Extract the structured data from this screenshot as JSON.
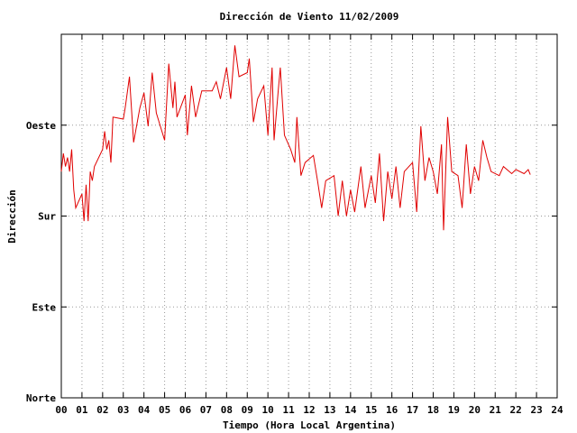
{
  "chart_data": {
    "type": "line",
    "title": "Dirección de Viento 11/02/2009",
    "x_label": "Tiempo (Hora Local Argentina)",
    "y_label": "Dirección",
    "xlim": [
      0,
      24
    ],
    "ylim": [
      0,
      360
    ],
    "grid": true,
    "xticks": [
      {
        "value": 0,
        "label": "00"
      },
      {
        "value": 1,
        "label": "01"
      },
      {
        "value": 2,
        "label": "02"
      },
      {
        "value": 3,
        "label": "03"
      },
      {
        "value": 4,
        "label": "04"
      },
      {
        "value": 5,
        "label": "05"
      },
      {
        "value": 6,
        "label": "06"
      },
      {
        "value": 7,
        "label": "07"
      },
      {
        "value": 8,
        "label": "08"
      },
      {
        "value": 9,
        "label": "09"
      },
      10,
      11,
      12,
      13,
      14,
      15,
      16,
      17,
      18,
      19,
      20,
      21,
      22,
      23,
      24
    ],
    "yticks": [
      {
        "value": 0,
        "label": "Norte"
      },
      {
        "value": 90,
        "label": "Este"
      },
      {
        "value": 180,
        "label": "Sur"
      },
      {
        "value": 270,
        "label": "Oeste"
      }
    ],
    "series": [
      {
        "color": "#e00000",
        "x": [
          0.0,
          0.1,
          0.2,
          0.3,
          0.4,
          0.5,
          0.6,
          0.7,
          1.0,
          1.1,
          1.2,
          1.3,
          1.4,
          1.5,
          1.6,
          2.0,
          2.1,
          2.2,
          2.3,
          2.4,
          2.5,
          3.0,
          3.1,
          3.3,
          3.5,
          3.8,
          4.0,
          4.2,
          4.4,
          4.6,
          5.0,
          5.2,
          5.4,
          5.5,
          5.6,
          6.0,
          6.1,
          6.3,
          6.5,
          6.8,
          7.3,
          7.5,
          7.7,
          8.0,
          8.2,
          8.4,
          8.6,
          9.0,
          9.1,
          9.3,
          9.5,
          9.8,
          10.0,
          10.2,
          10.3,
          10.5,
          10.6,
          10.8,
          11.1,
          11.3,
          11.4,
          11.6,
          11.8,
          12.2,
          12.4,
          12.6,
          12.8,
          13.2,
          13.4,
          13.6,
          13.8,
          14.0,
          14.2,
          14.5,
          14.7,
          15.0,
          15.2,
          15.4,
          15.6,
          15.8,
          16.0,
          16.2,
          16.4,
          16.6,
          17.0,
          17.2,
          17.4,
          17.6,
          17.8,
          18.0,
          18.2,
          18.4,
          18.5,
          18.7,
          18.9,
          19.2,
          19.4,
          19.6,
          19.8,
          20.0,
          20.2,
          20.4,
          20.6,
          20.8,
          21.2,
          21.4,
          21.8,
          22.0,
          22.4,
          22.6,
          22.7
        ],
        "values": [
          224,
          242,
          229,
          238,
          224,
          246,
          206,
          188,
          202,
          175,
          211,
          175,
          224,
          215,
          229,
          246,
          264,
          246,
          255,
          233,
          278,
          276,
          288,
          318,
          253,
          287,
          302,
          269,
          322,
          282,
          255,
          331,
          287,
          313,
          278,
          300,
          260,
          309,
          278,
          304,
          304,
          313,
          296,
          327,
          296,
          349,
          318,
          322,
          336,
          273,
          296,
          309,
          260,
          327,
          255,
          304,
          327,
          260,
          246,
          233,
          278,
          220,
          233,
          240,
          215,
          188,
          215,
          220,
          180,
          215,
          180,
          206,
          184,
          229,
          188,
          220,
          193,
          242,
          175,
          224,
          197,
          229,
          188,
          224,
          233,
          184,
          269,
          215,
          238,
          224,
          202,
          251,
          166,
          278,
          224,
          220,
          188,
          251,
          202,
          229,
          215,
          255,
          238,
          224,
          220,
          229,
          222,
          226,
          222,
          226,
          221
        ]
      }
    ]
  }
}
